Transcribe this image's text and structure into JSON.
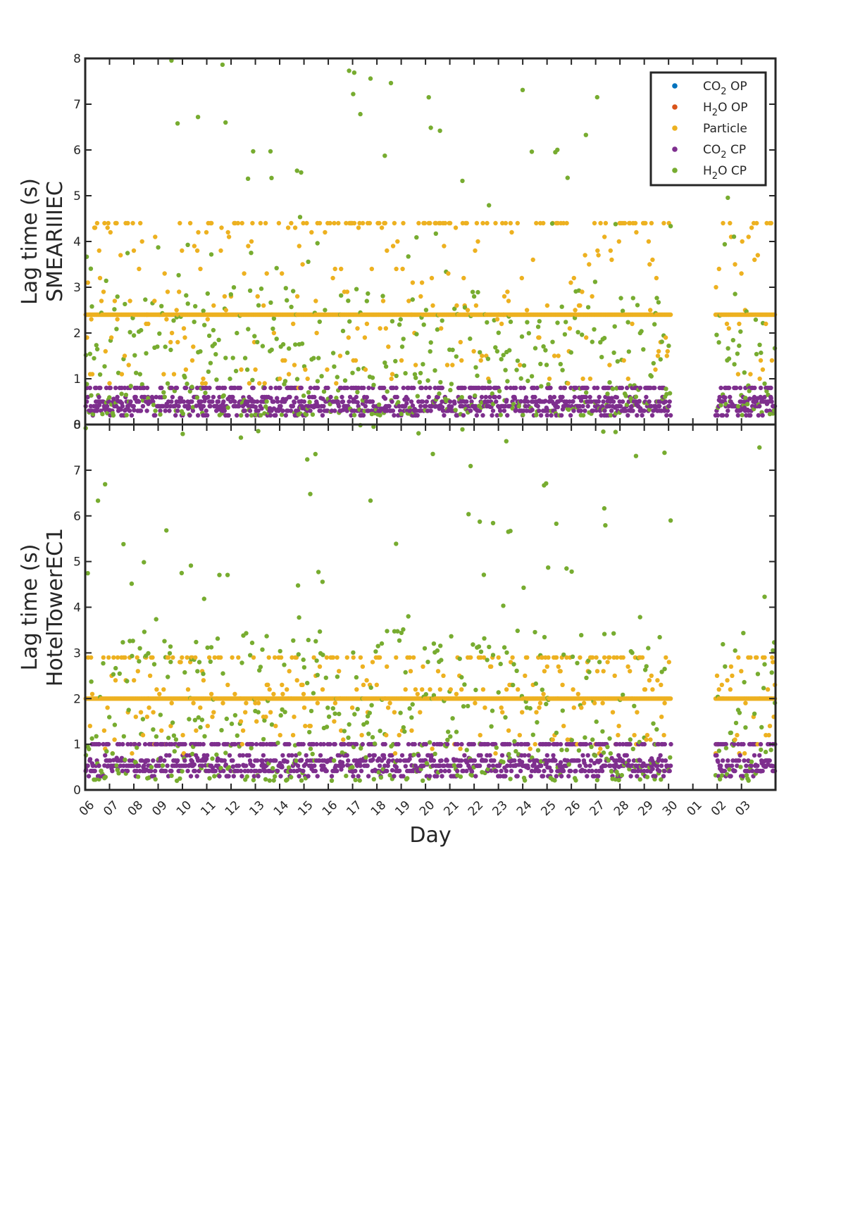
{
  "chart_data": {
    "type": "scatter",
    "xlabel": "Day",
    "x_tick_labels": [
      "06",
      "07",
      "08",
      "09",
      "10",
      "11",
      "12",
      "13",
      "14",
      "15",
      "16",
      "17",
      "18",
      "19",
      "20",
      "21",
      "22",
      "23",
      "24",
      "25",
      "26",
      "27",
      "28",
      "29",
      "30",
      "01",
      "02",
      "03"
    ],
    "x_range_days": [
      0,
      28.4
    ],
    "gap_days": [
      24.1,
      25.9
    ],
    "ylim": [
      0,
      8
    ],
    "y_ticks": [
      "0",
      "1",
      "2",
      "3",
      "4",
      "5",
      "6",
      "7",
      "8"
    ],
    "legend_position": "top-right",
    "series": [
      {
        "name": "CO2 OP",
        "color": "#0072BD"
      },
      {
        "name": "H2O OP",
        "color": "#D95319"
      },
      {
        "name": "Particle",
        "color": "#EDB120"
      },
      {
        "name": "CO2 CP",
        "color": "#7E2F8E"
      },
      {
        "name": "H2O CP",
        "color": "#77AC30"
      }
    ],
    "panels": [
      {
        "ylabel_line1": "Lag time (s)",
        "ylabel_line2": "SMEARIIIEC",
        "particle_baseline": 2.4,
        "particle_upper": 4.4,
        "co2_cp_range": [
          0.1,
          0.8
        ],
        "h2o_cp_typical_range": [
          0.2,
          3.0
        ],
        "show_legend": true
      },
      {
        "ylabel_line1": "Lag time (s)",
        "ylabel_line2": "HotelTowerEC1",
        "particle_baseline": 2.0,
        "particle_upper": 2.9,
        "co2_cp_range": [
          0.2,
          1.0
        ],
        "h2o_cp_typical_range": [
          0.2,
          3.5
        ],
        "show_legend": false
      }
    ]
  }
}
